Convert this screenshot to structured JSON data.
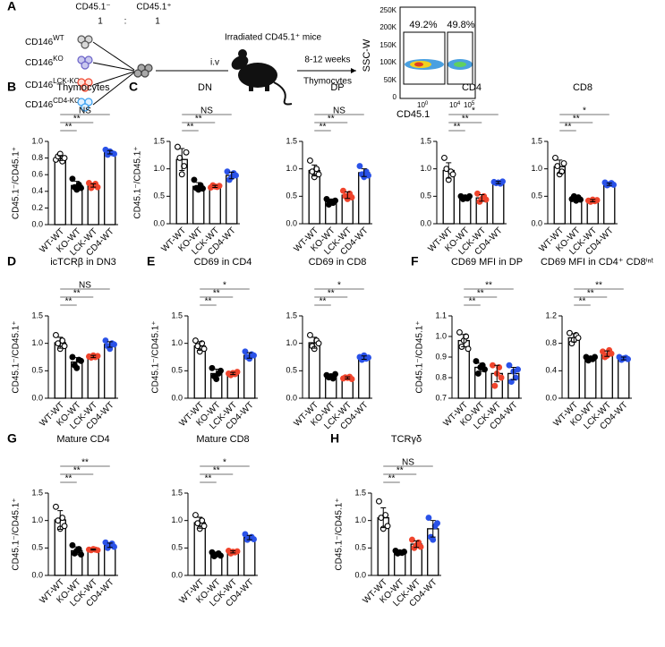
{
  "panel_a": {
    "letter": "A",
    "donor_headers": [
      "CD45.1⁻",
      "CD45.1⁺"
    ],
    "ratio": [
      "1",
      ":",
      "1"
    ],
    "donors": [
      {
        "base": "CD146",
        "sup": "WT"
      },
      {
        "base": "CD146",
        "sup": "KO"
      },
      {
        "base": "CD146",
        "sup": "LCK-KO"
      },
      {
        "base": "CD146",
        "sup": "CD4-KO"
      }
    ],
    "route": "i.v",
    "recipient": "Irradiated CD45.1⁺ mice",
    "duration": "8-12 weeks",
    "tissue": "Thymocytes",
    "flow": {
      "gates": [
        "49.2%",
        "49.8%"
      ],
      "ylabel": "SSC-W",
      "xlabel": "CD45.1",
      "yticks": [
        "250K",
        "200K",
        "150K",
        "100K",
        "50K",
        "0"
      ],
      "xticks": [
        {
          "base": "10",
          "sup": "0"
        },
        {
          "base": "10",
          "sup": "4"
        },
        {
          "base": "10",
          "sup": "5"
        }
      ]
    }
  },
  "chart_data": [
    {
      "type": "bar",
      "panel": "B",
      "title": "Thymocytes",
      "ylabel": "CD45.1⁻/CD45.1⁺",
      "categories": [
        "WT-WT",
        "KO-WT",
        "LCK-WT",
        "CD4-WT"
      ],
      "values": [
        0.8,
        0.47,
        0.47,
        0.87
      ],
      "errors": [
        0.03,
        0.05,
        0.02,
        0.02
      ],
      "points": [
        [
          0.78,
          0.82,
          0.85,
          0.76,
          0.8
        ],
        [
          0.55,
          0.45,
          0.42,
          0.48,
          0.44
        ],
        [
          0.5,
          0.44,
          0.47,
          0.49,
          0.45
        ],
        [
          0.9,
          0.84,
          0.88,
          0.86,
          0.85
        ]
      ],
      "bar_color": "#000000",
      "point_colors": [
        "#ffffff",
        "#000000",
        "#f0442c",
        "#2a52e8"
      ],
      "significance": [
        "**",
        "**",
        "NS"
      ],
      "ylim": [
        0,
        1
      ],
      "yticks": [
        {
          "value": 0,
          "label": "0.0"
        },
        0.2,
        0.4,
        0.6,
        0.8,
        {
          "value": 1,
          "label": "1.0"
        }
      ]
    },
    {
      "type": "bar",
      "panel": "C",
      "title": "DN",
      "ylabel": "CD45.1⁻/CD45.1⁺",
      "categories": [
        "WT-WT",
        "KO-WT",
        "LCK-WT",
        "CD4-WT"
      ],
      "values": [
        1.17,
        0.68,
        0.68,
        0.88
      ],
      "errors": [
        0.2,
        0.07,
        0.02,
        0.06
      ],
      "points": [
        [
          1.4,
          1.2,
          0.9,
          1.05,
          1.3
        ],
        [
          0.8,
          0.65,
          0.62,
          0.7,
          0.64
        ],
        [
          0.66,
          0.7,
          0.68,
          0.67,
          0.69
        ],
        [
          0.95,
          0.8,
          0.85,
          0.92,
          0.88
        ]
      ],
      "bar_color": "#000000",
      "point_colors": [
        "#ffffff",
        "#000000",
        "#f0442c",
        "#2a52e8"
      ],
      "significance": [
        "**",
        "**",
        "NS"
      ],
      "ylim": [
        0,
        1.5
      ],
      "yticks": [
        {
          "value": 0,
          "label": "0.0"
        },
        0.5,
        {
          "value": 1,
          "label": "1.0"
        },
        1.5
      ]
    },
    {
      "type": "bar",
      "title": "DP",
      "categories": [
        "WT-WT",
        "KO-WT",
        "LCK-WT",
        "CD4-WT"
      ],
      "values": [
        0.97,
        0.4,
        0.52,
        0.93
      ],
      "errors": [
        0.1,
        0.05,
        0.06,
        0.07
      ],
      "points": [
        [
          1.15,
          0.95,
          0.85,
          1.0,
          0.9
        ],
        [
          0.45,
          0.35,
          0.4,
          0.38,
          0.42
        ],
        [
          0.6,
          0.5,
          0.45,
          0.55,
          0.48
        ],
        [
          1.05,
          0.9,
          0.85,
          0.95,
          0.88
        ]
      ],
      "bar_color": "#000000",
      "point_colors": [
        "#ffffff",
        "#000000",
        "#f0442c",
        "#2a52e8"
      ],
      "significance": [
        "**",
        "**",
        "NS"
      ],
      "ylim": [
        0,
        1.5
      ],
      "yticks": [
        {
          "value": 0,
          "label": "0.0"
        },
        0.5,
        {
          "value": 1,
          "label": "1.0"
        },
        1.5
      ]
    },
    {
      "type": "bar",
      "title": "CD4",
      "categories": [
        "WT-WT",
        "KO-WT",
        "LCK-WT",
        "CD4-WT"
      ],
      "values": [
        0.97,
        0.48,
        0.47,
        0.75
      ],
      "errors": [
        0.14,
        0.03,
        0.06,
        0.02
      ],
      "points": [
        [
          1.2,
          1.0,
          0.8,
          0.95,
          0.9
        ],
        [
          0.5,
          0.45,
          0.48,
          0.46,
          0.5
        ],
        [
          0.55,
          0.4,
          0.45,
          0.5,
          0.44
        ],
        [
          0.76,
          0.74,
          0.75,
          0.73,
          0.77
        ]
      ],
      "bar_color": "#000000",
      "point_colors": [
        "#ffffff",
        "#000000",
        "#f0442c",
        "#2a52e8"
      ],
      "significance": [
        "**",
        "**",
        "*"
      ],
      "ylim": [
        0,
        1.5
      ],
      "yticks": [
        {
          "value": 0,
          "label": "0.0"
        },
        0.5,
        {
          "value": 1,
          "label": "1.0"
        },
        1.5
      ]
    },
    {
      "type": "bar",
      "title": "CD8",
      "categories": [
        "WT-WT",
        "KO-WT",
        "LCK-WT",
        "CD4-WT"
      ],
      "values": [
        1.04,
        0.46,
        0.42,
        0.72
      ],
      "errors": [
        0.12,
        0.03,
        0.02,
        0.02
      ],
      "points": [
        [
          1.2,
          1.05,
          0.9,
          0.95,
          1.1
        ],
        [
          0.45,
          0.5,
          0.42,
          0.48,
          0.44
        ],
        [
          0.42,
          0.4,
          0.44,
          0.41,
          0.43
        ],
        [
          0.75,
          0.7,
          0.72,
          0.74,
          0.71
        ]
      ],
      "bar_color": "#000000",
      "point_colors": [
        "#ffffff",
        "#000000",
        "#f0442c",
        "#2a52e8"
      ],
      "significance": [
        "**",
        "**",
        "*"
      ],
      "ylim": [
        0,
        1.5
      ],
      "yticks": [
        {
          "value": 0,
          "label": "0.0"
        },
        0.5,
        {
          "value": 1,
          "label": "1.0"
        },
        1.5
      ]
    },
    {
      "type": "bar",
      "panel": "D",
      "title": "icTCRβ in DN3",
      "ylabel": "CD45.1⁻/CD45.1⁺",
      "categories": [
        "WT-WT",
        "KO-WT",
        "LCK-WT",
        "CD4-WT"
      ],
      "values": [
        1.01,
        0.66,
        0.76,
        0.98
      ],
      "errors": [
        0.1,
        0.08,
        0.02,
        0.05
      ],
      "points": [
        [
          1.15,
          1.0,
          0.9,
          1.05,
          0.95
        ],
        [
          0.75,
          0.6,
          0.55,
          0.7,
          0.68
        ],
        [
          0.76,
          0.74,
          0.78,
          0.75,
          0.77
        ],
        [
          1.05,
          0.95,
          0.9,
          1.0,
          0.98
        ]
      ],
      "bar_color": "#000000",
      "point_colors": [
        "#ffffff",
        "#000000",
        "#f0442c",
        "#2a52e8"
      ],
      "significance": [
        "**",
        "**",
        "NS"
      ],
      "ylim": [
        0,
        1.5
      ],
      "yticks": [
        {
          "value": 0,
          "label": "0.0"
        },
        0.5,
        {
          "value": 1,
          "label": "1.0"
        },
        1.5
      ]
    },
    {
      "type": "bar",
      "panel": "E",
      "title": "CD69 in CD4",
      "ylabel": "CD45.1⁻/CD45.1⁺",
      "categories": [
        "WT-WT",
        "KO-WT",
        "LCK-WT",
        "CD4-WT"
      ],
      "values": [
        0.95,
        0.45,
        0.45,
        0.78
      ],
      "errors": [
        0.08,
        0.08,
        0.02,
        0.05
      ],
      "points": [
        [
          1.05,
          0.95,
          0.85,
          1.0,
          0.9
        ],
        [
          0.55,
          0.4,
          0.35,
          0.45,
          0.5
        ],
        [
          0.45,
          0.42,
          0.46,
          0.44,
          0.48
        ],
        [
          0.85,
          0.75,
          0.72,
          0.8,
          0.78
        ]
      ],
      "bar_color": "#000000",
      "point_colors": [
        "#ffffff",
        "#000000",
        "#f0442c",
        "#2a52e8"
      ],
      "significance": [
        "**",
        "**",
        "*"
      ],
      "ylim": [
        0,
        1.5
      ],
      "yticks": [
        {
          "value": 0,
          "label": "0.0"
        },
        0.5,
        {
          "value": 1,
          "label": "1.0"
        },
        1.5
      ]
    },
    {
      "type": "bar",
      "title": "CD69 in CD8",
      "categories": [
        "WT-WT",
        "KO-WT",
        "LCK-WT",
        "CD4-WT"
      ],
      "values": [
        1.01,
        0.4,
        0.37,
        0.74
      ],
      "errors": [
        0.1,
        0.03,
        0.02,
        0.03
      ],
      "points": [
        [
          1.15,
          0.95,
          0.9,
          1.05,
          1.0
        ],
        [
          0.42,
          0.38,
          0.4,
          0.36,
          0.44
        ],
        [
          0.36,
          0.38,
          0.37,
          0.39,
          0.35
        ],
        [
          0.75,
          0.7,
          0.78,
          0.72,
          0.74
        ]
      ],
      "bar_color": "#000000",
      "point_colors": [
        "#ffffff",
        "#000000",
        "#f0442c",
        "#2a52e8"
      ],
      "significance": [
        "**",
        "**",
        "*"
      ],
      "ylim": [
        0,
        1.5
      ],
      "yticks": [
        {
          "value": 0,
          "label": "0.0"
        },
        0.5,
        {
          "value": 1,
          "label": "1.0"
        },
        1.5
      ]
    },
    {
      "type": "bar",
      "panel": "F",
      "title": "CD69 MFI in DP",
      "ylabel": "CD45.1⁻/CD45.1⁺",
      "categories": [
        "WT-WT",
        "KO-WT",
        "LCK-WT",
        "CD4-WT"
      ],
      "values": [
        0.98,
        0.85,
        0.82,
        0.82
      ],
      "errors": [
        0.03,
        0.02,
        0.04,
        0.03
      ],
      "points": [
        [
          1.02,
          0.95,
          0.98,
          1.0,
          0.94
        ],
        [
          0.88,
          0.82,
          0.85,
          0.86,
          0.84
        ],
        [
          0.86,
          0.76,
          0.82,
          0.85,
          0.8
        ],
        [
          0.86,
          0.78,
          0.83,
          0.8,
          0.84
        ]
      ],
      "bar_color": "#000000",
      "point_colors": [
        "#ffffff",
        "#000000",
        "#f0442c",
        "#2a52e8"
      ],
      "significance": [
        "**",
        "**",
        "**"
      ],
      "ylim": [
        0.7,
        1.1
      ],
      "yticks": [
        0.7,
        0.8,
        0.9,
        {
          "value": 1,
          "label": "1.0"
        },
        1.1
      ]
    },
    {
      "type": "bar",
      "title": "CD69 MFI in CD4⁺ CD8ⁱⁿᵗ",
      "categories": [
        "WT-WT",
        "KO-WT",
        "LCK-WT",
        "CD4-WT"
      ],
      "values": [
        0.88,
        0.58,
        0.65,
        0.58
      ],
      "errors": [
        0.06,
        0.02,
        0.04,
        0.02
      ],
      "points": [
        [
          0.95,
          0.8,
          0.85,
          0.92,
          0.88
        ],
        [
          0.6,
          0.55,
          0.58,
          0.57,
          0.6
        ],
        [
          0.68,
          0.6,
          0.62,
          0.7,
          0.65
        ],
        [
          0.6,
          0.56,
          0.58,
          0.59,
          0.57
        ]
      ],
      "bar_color": "#000000",
      "point_colors": [
        "#ffffff",
        "#000000",
        "#f0442c",
        "#2a52e8"
      ],
      "significance": [
        "**",
        "**",
        "**"
      ],
      "ylim": [
        0,
        1.2
      ],
      "yticks": [
        {
          "value": 0,
          "label": "0.0"
        },
        0.4,
        0.8,
        1.2
      ]
    },
    {
      "type": "bar",
      "panel": "G",
      "title": "Mature CD4",
      "ylabel": "CD45.1⁻/CD45.1⁺",
      "categories": [
        "WT-WT",
        "KO-WT",
        "LCK-WT",
        "CD4-WT"
      ],
      "values": [
        1.01,
        0.45,
        0.47,
        0.55
      ],
      "errors": [
        0.17,
        0.07,
        0.01,
        0.04
      ],
      "points": [
        [
          1.25,
          1.0,
          0.85,
          1.05,
          0.9
        ],
        [
          0.55,
          0.4,
          0.45,
          0.48,
          0.38
        ],
        [
          0.47,
          0.46,
          0.48,
          0.47,
          0.46
        ],
        [
          0.6,
          0.5,
          0.55,
          0.58,
          0.52
        ]
      ],
      "bar_color": "#000000",
      "point_colors": [
        "#ffffff",
        "#000000",
        "#f0442c",
        "#2a52e8"
      ],
      "significance": [
        "**",
        "**",
        "**"
      ],
      "ylim": [
        0,
        1.5
      ],
      "yticks": [
        {
          "value": 0,
          "label": "0.0"
        },
        0.5,
        {
          "value": 1,
          "label": "1.0"
        },
        1.5
      ]
    },
    {
      "type": "bar",
      "title": "Mature CD8",
      "categories": [
        "WT-WT",
        "KO-WT",
        "LCK-WT",
        "CD4-WT"
      ],
      "values": [
        0.96,
        0.38,
        0.43,
        0.69
      ],
      "errors": [
        0.1,
        0.03,
        0.02,
        0.04
      ],
      "points": [
        [
          1.1,
          0.95,
          0.85,
          1.0,
          0.9
        ],
        [
          0.42,
          0.35,
          0.38,
          0.4,
          0.36
        ],
        [
          0.45,
          0.4,
          0.43,
          0.42,
          0.44
        ],
        [
          0.75,
          0.65,
          0.68,
          0.7,
          0.66
        ]
      ],
      "bar_color": "#000000",
      "point_colors": [
        "#ffffff",
        "#000000",
        "#f0442c",
        "#2a52e8"
      ],
      "significance": [
        "**",
        "**",
        "*"
      ],
      "ylim": [
        0,
        1.5
      ],
      "yticks": [
        {
          "value": 0,
          "label": "0.0"
        },
        0.5,
        {
          "value": 1,
          "label": "1.0"
        },
        1.5
      ]
    },
    {
      "type": "bar",
      "panel": "H",
      "title": "TCRγδ",
      "ylabel": "CD45.1⁻/CD45.1⁺",
      "categories": [
        "WT-WT",
        "KO-WT",
        "LCK-WT",
        "CD4-WT"
      ],
      "values": [
        1.05,
        0.42,
        0.57,
        0.85
      ],
      "errors": [
        0.18,
        0.02,
        0.06,
        0.15
      ],
      "points": [
        [
          1.35,
          1.05,
          0.85,
          1.1,
          0.9
        ],
        [
          0.45,
          0.4,
          0.42,
          0.41,
          0.43
        ],
        [
          0.65,
          0.5,
          0.55,
          0.6,
          0.52
        ],
        [
          1.05,
          0.7,
          0.65,
          0.9,
          0.95
        ]
      ],
      "bar_color": "#000000",
      "point_colors": [
        "#ffffff",
        "#000000",
        "#f0442c",
        "#2a52e8"
      ],
      "significance": [
        "**",
        "**",
        "NS"
      ],
      "ylim": [
        0,
        1.5
      ],
      "yticks": [
        {
          "value": 0,
          "label": "0.0"
        },
        0.5,
        {
          "value": 1,
          "label": "1.0"
        },
        1.5
      ]
    }
  ]
}
